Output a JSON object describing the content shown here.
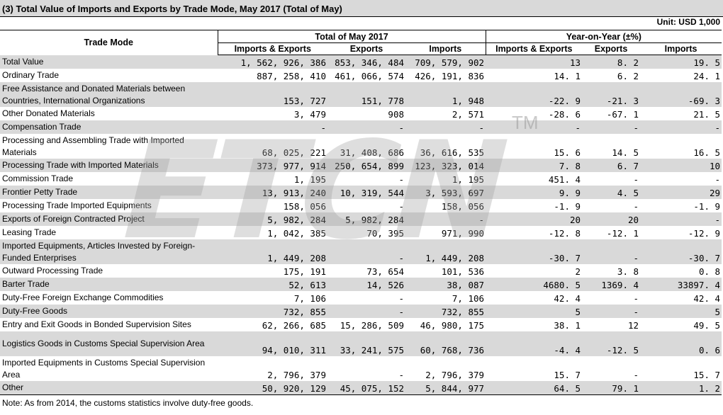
{
  "title": "(3) Total Value of Imports and Exports by Trade Mode, May 2017 (Total of May)",
  "unit": "Unit: USD 1,000",
  "headers": {
    "trade_mode": "Trade Mode",
    "total_group": "Total of May 2017",
    "yoy_group": "Year-on-Year (±%)",
    "imports_exports": "Imports & Exports",
    "exports": "Exports",
    "imports": "Imports"
  },
  "rows": [
    {
      "label": "Total Value",
      "ie": "1, 562, 926, 386",
      "ex": "853, 346, 484",
      "im": "709, 579, 902",
      "yie": "13",
      "yex": "8. 2",
      "yim": "19. 5"
    },
    {
      "label": "Ordinary Trade",
      "ie": "887, 258, 410",
      "ex": "461, 066, 574",
      "im": "426, 191, 836",
      "yie": "14. 1",
      "yex": "6. 2",
      "yim": "24. 1"
    },
    {
      "label": "Free Assistance and Donated Materials between Countries, International Organizations",
      "ie": "153, 727",
      "ex": "151, 778",
      "im": "1, 948",
      "yie": "-22. 9",
      "yex": "-21. 3",
      "yim": "-69. 3"
    },
    {
      "label": "Other Donated Materials",
      "ie": "3, 479",
      "ex": "908",
      "im": "2, 571",
      "yie": "-28. 6",
      "yex": "-67. 1",
      "yim": "21. 5"
    },
    {
      "label": "Compensation Trade",
      "ie": "-",
      "ex": "-",
      "im": "-",
      "yie": "-",
      "yex": "-",
      "yim": "-"
    },
    {
      "label": "Processing and Assembling Trade with Imported Materials",
      "ie": "68, 025, 221",
      "ex": "31, 408, 686",
      "im": "36, 616, 535",
      "yie": "15. 6",
      "yex": "14. 5",
      "yim": "16. 5"
    },
    {
      "label": "Processing Trade with Imported Materials",
      "ie": "373, 977, 914",
      "ex": "250, 654, 899",
      "im": "123, 323, 014",
      "yie": "7. 8",
      "yex": "6. 7",
      "yim": "10"
    },
    {
      "label": "Commission Trade",
      "ie": "1, 195",
      "ex": "-",
      "im": "1, 195",
      "yie": "451. 4",
      "yex": "-",
      "yim": "-"
    },
    {
      "label": "Frontier Petty Trade",
      "ie": "13, 913, 240",
      "ex": "10, 319, 544",
      "im": "3, 593, 697",
      "yie": "9. 9",
      "yex": "4. 5",
      "yim": "29"
    },
    {
      "label": "Processing Trade Imported Equipments",
      "ie": "158, 056",
      "ex": "-",
      "im": "158, 056",
      "yie": "-1. 9",
      "yex": "-",
      "yim": "-1. 9"
    },
    {
      "label": "Exports of Foreign Contracted Project",
      "ie": "5, 982, 284",
      "ex": "5, 982, 284",
      "im": "-",
      "yie": "20",
      "yex": "20",
      "yim": "-"
    },
    {
      "label": "Leasing Trade",
      "ie": "1, 042, 385",
      "ex": "70, 395",
      "im": "971, 990",
      "yie": "-12. 8",
      "yex": "-12. 1",
      "yim": "-12. 9"
    },
    {
      "label": "Imported Equipments, Articles Invested by Foreign-Funded Enterprises",
      "ie": "1, 449, 208",
      "ex": "-",
      "im": "1, 449, 208",
      "yie": "-30. 7",
      "yex": "-",
      "yim": "-30. 7"
    },
    {
      "label": "Outward Processing Trade",
      "ie": "175, 191",
      "ex": "73, 654",
      "im": "101, 536",
      "yie": "2",
      "yex": "3. 8",
      "yim": "0. 8"
    },
    {
      "label": "Barter Trade",
      "ie": "52, 613",
      "ex": "14, 526",
      "im": "38, 087",
      "yie": "4680. 5",
      "yex": "1369. 4",
      "yim": "33897. 4"
    },
    {
      "label": "Duty-Free Foreign Exchange Commodities",
      "ie": "7, 106",
      "ex": "-",
      "im": "7, 106",
      "yie": "42. 4",
      "yex": "-",
      "yim": "42. 4"
    },
    {
      "label": "Duty-Free Goods",
      "ie": "732, 855",
      "ex": "-",
      "im": "732, 855",
      "yie": "5",
      "yex": "-",
      "yim": "5"
    },
    {
      "label": "Entry and Exit Goods in Bonded Supervision Sites",
      "ie": "62, 266, 685",
      "ex": "15, 286, 509",
      "im": "46, 980, 175",
      "yie": "38. 1",
      "yex": "12",
      "yim": "49. 5"
    },
    {
      "label": "Logistics Goods in Customs Special Supervision Area",
      "ie": "94, 010, 311",
      "ex": "33, 241, 575",
      "im": "60, 768, 736",
      "yie": "-4. 4",
      "yex": "-12. 5",
      "yim": "0. 6"
    },
    {
      "label": "Imported Equipments in Customs Special Supervision Area",
      "ie": "2, 796, 379",
      "ex": "-",
      "im": "2, 796, 379",
      "yie": "15. 7",
      "yex": "-",
      "yim": "15. 7"
    },
    {
      "label": "Other",
      "ie": "50, 920, 129",
      "ex": "45, 075, 152",
      "im": "5, 844, 977",
      "yie": "64. 5",
      "yex": "79. 1",
      "yim": "1. 2"
    }
  ],
  "note": "Note: As from 2014, the customs statistics involve duty-free goods.",
  "watermark": "ETCN",
  "watermark_tm": "TM",
  "colors": {
    "shade": "#d9d9d9",
    "title_bg": "#d9d9d9"
  }
}
